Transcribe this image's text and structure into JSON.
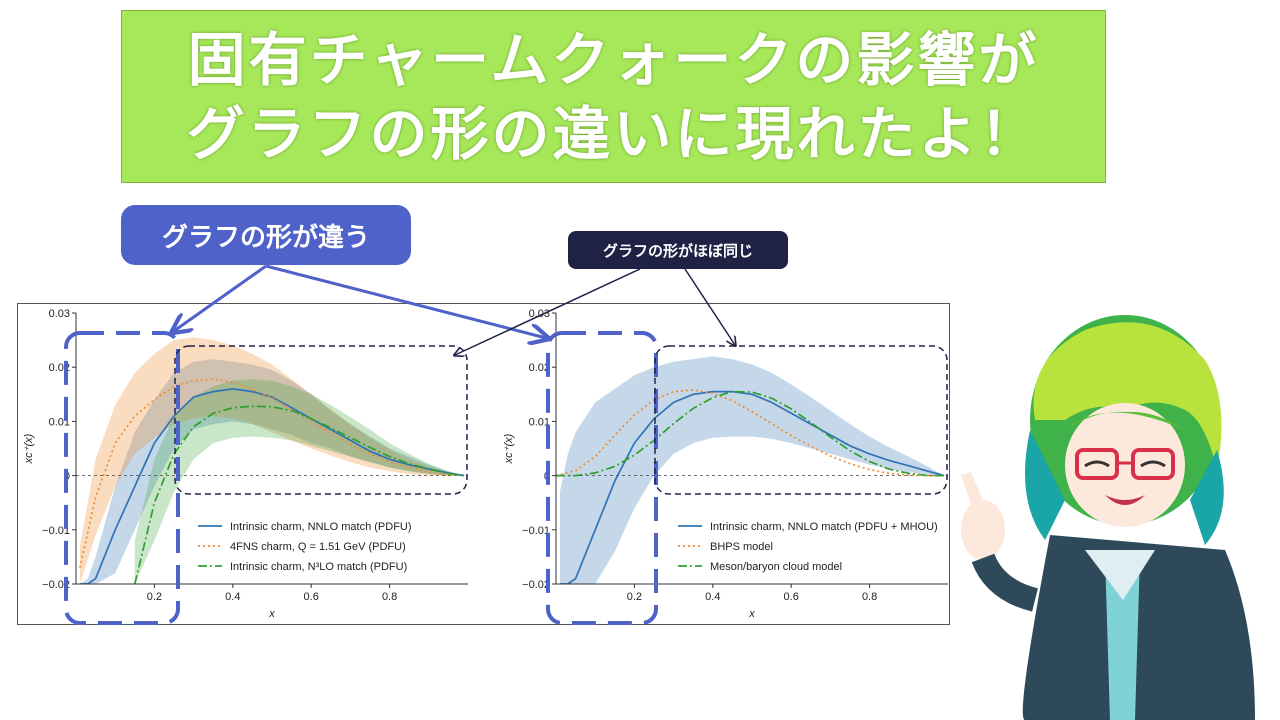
{
  "banner": {
    "line1": "固有チャームクォークの影響が",
    "line2": "グラフの形の違いに現れたよ！"
  },
  "callouts": {
    "different": "グラフの形が違う",
    "same": "グラフの形がほぼ同じ"
  },
  "colors": {
    "banner_bg": "#a6e85a",
    "callout_blue": "#4f62c9",
    "callout_navy": "#1f2245",
    "series_blue": "#2f74b5",
    "series_orange": "#f08a30",
    "series_green": "#2ea02e"
  },
  "chart_data": [
    {
      "type": "line",
      "xlabel": "x",
      "ylabel": "xc⁺(x)",
      "xlim": [
        0,
        1
      ],
      "ylim": [
        -0.02,
        0.03
      ],
      "xticks": [
        "0.2",
        "0.4",
        "0.6",
        "0.8"
      ],
      "yticks": [
        "−0.02",
        "−0.01",
        "0",
        "0.01",
        "0.02",
        "0.03"
      ],
      "legend": "bottom-right",
      "series": [
        {
          "name": "Intrinsic charm, NNLO match (PDFU)",
          "style": "solid",
          "x": [
            0.01,
            0.03,
            0.05,
            0.1,
            0.15,
            0.2,
            0.25,
            0.3,
            0.35,
            0.4,
            0.45,
            0.5,
            0.55,
            0.6,
            0.65,
            0.7,
            0.75,
            0.8,
            0.85,
            0.9,
            0.95,
            0.99
          ],
          "y": [
            -0.02,
            -0.02,
            -0.019,
            -0.01,
            -0.002,
            0.006,
            0.011,
            0.0145,
            0.0155,
            0.016,
            0.0155,
            0.0145,
            0.0125,
            0.0105,
            0.0085,
            0.0065,
            0.0045,
            0.003,
            0.002,
            0.0012,
            0.0005,
            0.0
          ],
          "lower": [
            -0.02,
            -0.02,
            -0.02,
            -0.018,
            -0.01,
            -0.002,
            0.005,
            0.0085,
            0.0095,
            0.01,
            0.0095,
            0.0085,
            0.0075,
            0.006,
            0.005,
            0.0035,
            0.0025,
            0.0015,
            0.0008,
            0.0003,
            0.0,
            0.0
          ],
          "upper": [
            -0.02,
            -0.019,
            -0.015,
            -0.002,
            0.008,
            0.014,
            0.019,
            0.021,
            0.0215,
            0.021,
            0.0205,
            0.0195,
            0.0175,
            0.015,
            0.012,
            0.0095,
            0.0072,
            0.005,
            0.0035,
            0.002,
            0.0008,
            0.0
          ]
        },
        {
          "name": "4FNS charm, Q = 1.51 GeV (PDFU)",
          "style": "dotted",
          "x": [
            0.01,
            0.05,
            0.1,
            0.15,
            0.2,
            0.25,
            0.3,
            0.35,
            0.4,
            0.45,
            0.5,
            0.55,
            0.6,
            0.65,
            0.7,
            0.75,
            0.8,
            0.85,
            0.9,
            0.95,
            0.99
          ],
          "y": [
            -0.017,
            -0.004,
            0.006,
            0.011,
            0.014,
            0.0165,
            0.0175,
            0.0178,
            0.0172,
            0.016,
            0.0143,
            0.0122,
            0.01,
            0.0078,
            0.0058,
            0.004,
            0.0026,
            0.0015,
            0.0007,
            0.0002,
            0.0
          ],
          "lower": [
            -0.02,
            -0.011,
            -0.002,
            0.004,
            0.007,
            0.0095,
            0.0105,
            0.011,
            0.0105,
            0.0095,
            0.008,
            0.0065,
            0.005,
            0.0037,
            0.0025,
            0.0015,
            0.0008,
            0.0003,
            0.0,
            0.0,
            0.0
          ],
          "upper": [
            -0.013,
            0.003,
            0.013,
            0.019,
            0.0225,
            0.025,
            0.0255,
            0.025,
            0.024,
            0.0225,
            0.0205,
            0.0178,
            0.015,
            0.0122,
            0.0095,
            0.007,
            0.0048,
            0.003,
            0.0016,
            0.0006,
            0.0
          ]
        },
        {
          "name": "Intrinsic charm, N³LO match (PDFU)",
          "style": "dashdot",
          "x": [
            0.15,
            0.2,
            0.25,
            0.3,
            0.35,
            0.4,
            0.45,
            0.5,
            0.55,
            0.6,
            0.65,
            0.7,
            0.75,
            0.8,
            0.85,
            0.9,
            0.95,
            0.99
          ],
          "y": [
            -0.02,
            -0.005,
            0.004,
            0.009,
            0.0115,
            0.0125,
            0.0128,
            0.0127,
            0.012,
            0.0105,
            0.0088,
            0.007,
            0.0052,
            0.0035,
            0.0022,
            0.0012,
            0.0004,
            0.0
          ],
          "lower": [
            -0.02,
            -0.012,
            -0.003,
            0.003,
            0.006,
            0.007,
            0.0072,
            0.007,
            0.0065,
            0.0055,
            0.0045,
            0.0035,
            0.0025,
            0.0015,
            0.0008,
            0.0003,
            0.0,
            0.0
          ],
          "upper": [
            -0.012,
            0.003,
            0.011,
            0.0145,
            0.0165,
            0.0175,
            0.0178,
            0.0175,
            0.0165,
            0.015,
            0.013,
            0.0108,
            0.0085,
            0.006,
            0.004,
            0.0022,
            0.0008,
            0.0
          ]
        }
      ]
    },
    {
      "type": "line",
      "xlabel": "x",
      "ylabel": "xc⁺(x)",
      "xlim": [
        0,
        1
      ],
      "ylim": [
        -0.02,
        0.03
      ],
      "xticks": [
        "0.2",
        "0.4",
        "0.6",
        "0.8"
      ],
      "yticks": [
        "−0.02",
        "−0.01",
        "0",
        "0.01",
        "0.02",
        "0.03"
      ],
      "legend": "bottom-right",
      "series": [
        {
          "name": "Intrinsic charm, NNLO match (PDFU + MHOU)",
          "style": "solid",
          "x": [
            0.01,
            0.03,
            0.05,
            0.1,
            0.15,
            0.2,
            0.25,
            0.3,
            0.35,
            0.4,
            0.45,
            0.5,
            0.55,
            0.6,
            0.65,
            0.7,
            0.75,
            0.8,
            0.85,
            0.9,
            0.95,
            0.99
          ],
          "y": [
            -0.02,
            -0.02,
            -0.019,
            -0.01,
            -0.001,
            0.006,
            0.0105,
            0.0135,
            0.015,
            0.0155,
            0.0155,
            0.015,
            0.0135,
            0.0115,
            0.0095,
            0.0075,
            0.0055,
            0.004,
            0.0028,
            0.0018,
            0.0008,
            0.0
          ],
          "lower": [
            -0.02,
            -0.02,
            -0.02,
            -0.02,
            -0.014,
            -0.006,
            0.0,
            0.004,
            0.006,
            0.007,
            0.0072,
            0.0072,
            0.0068,
            0.006,
            0.005,
            0.004,
            0.003,
            0.002,
            0.0012,
            0.0006,
            0.0002,
            0.0
          ],
          "upper": [
            -0.003,
            0.004,
            0.008,
            0.0135,
            0.016,
            0.0185,
            0.02,
            0.021,
            0.0215,
            0.022,
            0.0215,
            0.0205,
            0.019,
            0.0168,
            0.0145,
            0.012,
            0.0095,
            0.0072,
            0.0052,
            0.0035,
            0.0016,
            0.0
          ]
        },
        {
          "name": "BHPS model",
          "style": "dotted",
          "x": [
            0.0,
            0.05,
            0.1,
            0.15,
            0.2,
            0.25,
            0.3,
            0.35,
            0.4,
            0.45,
            0.5,
            0.55,
            0.6,
            0.65,
            0.7,
            0.75,
            0.8,
            0.85,
            0.9,
            0.95,
            1.0
          ],
          "y": [
            0.0,
            0.0009,
            0.0035,
            0.0075,
            0.0112,
            0.014,
            0.0155,
            0.0158,
            0.0152,
            0.0138,
            0.0118,
            0.0096,
            0.0074,
            0.0054,
            0.0036,
            0.0022,
            0.0011,
            0.0004,
            0.0001,
            0.0,
            0.0
          ]
        },
        {
          "name": "Meson/baryon cloud model",
          "style": "dashdot",
          "x": [
            0.0,
            0.05,
            0.1,
            0.15,
            0.2,
            0.25,
            0.3,
            0.35,
            0.4,
            0.45,
            0.5,
            0.55,
            0.6,
            0.65,
            0.7,
            0.75,
            0.8,
            0.85,
            0.9,
            0.95,
            1.0
          ],
          "y": [
            0.0,
            0.0,
            0.0005,
            0.0017,
            0.0038,
            0.0065,
            0.0096,
            0.0124,
            0.0144,
            0.0155,
            0.0154,
            0.0143,
            0.0123,
            0.0098,
            0.0071,
            0.0046,
            0.0026,
            0.0012,
            0.0004,
            0.0,
            0.0
          ]
        }
      ]
    }
  ]
}
